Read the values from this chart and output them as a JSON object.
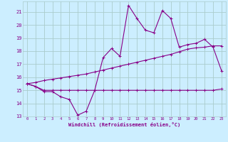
{
  "hours": [
    0,
    1,
    2,
    3,
    4,
    5,
    6,
    7,
    8,
    9,
    10,
    11,
    12,
    13,
    14,
    15,
    16,
    17,
    18,
    19,
    20,
    21,
    22,
    23
  ],
  "temp_curve": [
    15.5,
    15.3,
    14.9,
    14.9,
    14.5,
    14.3,
    13.1,
    13.4,
    15.0,
    17.5,
    18.2,
    17.6,
    21.5,
    20.5,
    19.6,
    19.4,
    21.1,
    20.5,
    18.3,
    18.5,
    18.6,
    18.9,
    18.3,
    16.5
  ],
  "flat_curve": [
    15.5,
    15.3,
    15.0,
    15.0,
    15.0,
    15.0,
    15.0,
    15.0,
    15.0,
    15.0,
    15.0,
    15.0,
    15.0,
    15.0,
    15.0,
    15.0,
    15.0,
    15.0,
    15.0,
    15.0,
    15.0,
    15.0,
    15.0,
    15.1
  ],
  "linear_curve": [
    15.5,
    15.6,
    15.75,
    15.85,
    15.95,
    16.05,
    16.15,
    16.25,
    16.4,
    16.55,
    16.7,
    16.85,
    17.0,
    17.15,
    17.3,
    17.45,
    17.6,
    17.75,
    17.95,
    18.15,
    18.25,
    18.3,
    18.4,
    18.4
  ],
  "line_color": "#880088",
  "bg_color": "#cceeff",
  "grid_color": "#aacccc",
  "xlabel": "Windchill (Refroidissement éolien,°C)",
  "ylim": [
    13,
    21.8
  ],
  "xlim": [
    -0.5,
    23.5
  ],
  "yticks": [
    13,
    14,
    15,
    16,
    17,
    18,
    19,
    20,
    21
  ],
  "xticks": [
    0,
    1,
    2,
    3,
    4,
    5,
    6,
    7,
    8,
    9,
    10,
    11,
    12,
    13,
    14,
    15,
    16,
    17,
    18,
    19,
    20,
    21,
    22,
    23
  ],
  "marker_size": 3.0,
  "linewidth": 0.8
}
